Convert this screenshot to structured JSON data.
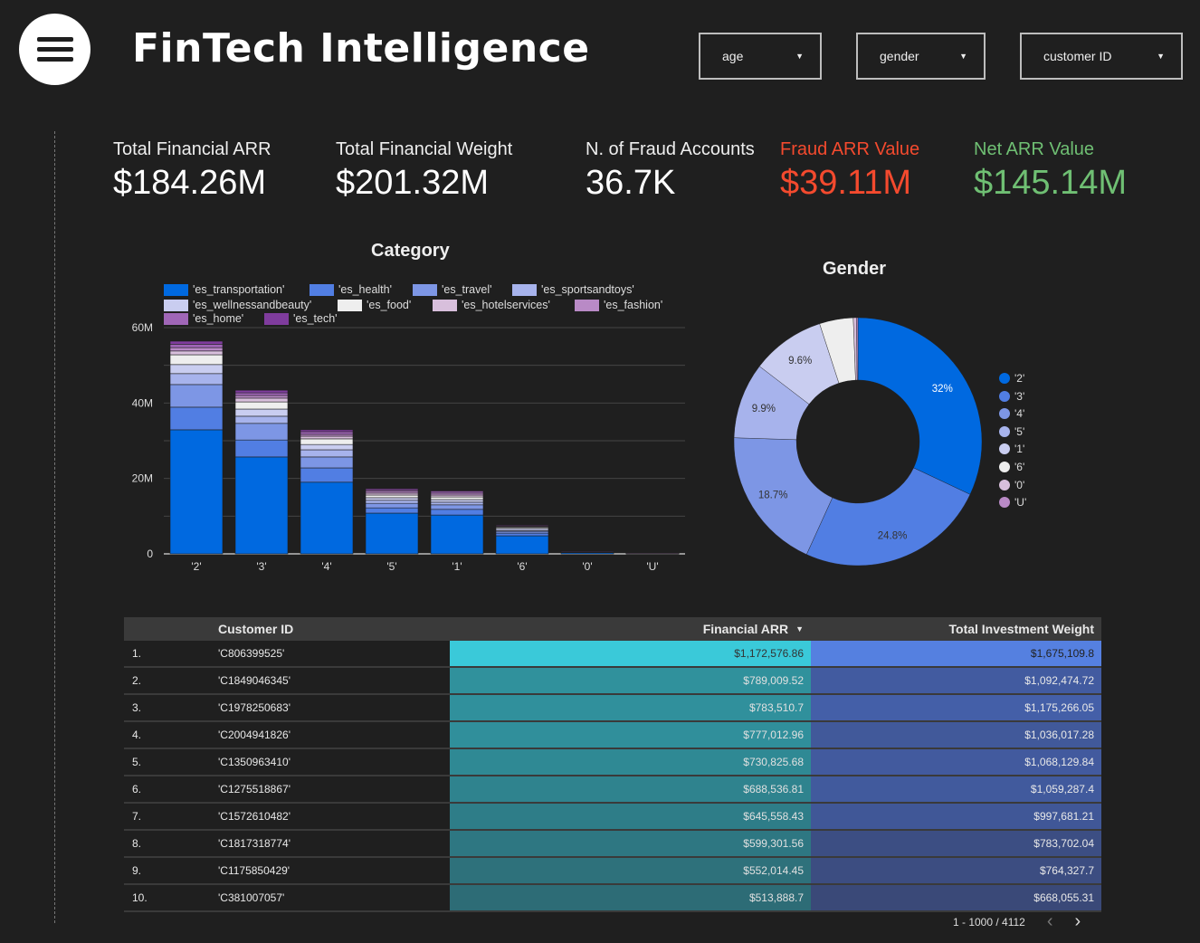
{
  "header": {
    "title": "FinTech Intelligence",
    "menu_icon": "hamburger-icon",
    "filters": [
      {
        "label": "age"
      },
      {
        "label": "gender"
      },
      {
        "label": "customer ID"
      }
    ]
  },
  "kpis": [
    {
      "label": "Total Financial ARR",
      "value": "$184.26M",
      "color": "#ffffff"
    },
    {
      "label": "Total Financial Weight",
      "value": "$201.32M",
      "color": "#ffffff"
    },
    {
      "label": "N. of Fraud Accounts",
      "value": "36.7K",
      "color": "#ffffff"
    },
    {
      "label": "Fraud ARR Value",
      "value": "$39.11M",
      "color": "#f44a2e"
    },
    {
      "label": "Net ARR Value",
      "value": "$145.14M",
      "color": "#6fbf73"
    }
  ],
  "chart_data": [
    {
      "type": "bar",
      "stacked": true,
      "title": "Category",
      "xlabel": "",
      "ylabel": "",
      "ylim": [
        0,
        60
      ],
      "yticks": [
        "0",
        "20M",
        "40M",
        "60M"
      ],
      "categories": [
        "'2'",
        "'3'",
        "'4'",
        "'5'",
        "'1'",
        "'6'",
        "'0'",
        "'U'"
      ],
      "series": [
        {
          "name": "'es_transportation'",
          "color": "#0069e0",
          "values": [
            32.9,
            25.7,
            19.0,
            10.8,
            10.3,
            4.8,
            0.4,
            0.15
          ]
        },
        {
          "name": "'es_health'",
          "color": "#517ee3",
          "values": [
            6.0,
            4.5,
            3.8,
            1.4,
            1.5,
            0.7,
            0.1,
            0.05
          ]
        },
        {
          "name": "'es_travel'",
          "color": "#7d96e5",
          "values": [
            6.0,
            4.4,
            2.9,
            1.2,
            1.2,
            0.5,
            0.05,
            0.03
          ]
        },
        {
          "name": "'es_sportsandtoys'",
          "color": "#a7b3ec",
          "values": [
            2.9,
            1.9,
            1.9,
            0.8,
            0.7,
            0.2,
            0.03,
            0.02
          ]
        },
        {
          "name": "'es_wellnessandbeauty'",
          "color": "#c9cdf0",
          "values": [
            2.4,
            1.9,
            1.4,
            0.7,
            0.7,
            0.5,
            0.03,
            0.02
          ]
        },
        {
          "name": "'es_food'",
          "color": "#eeeeee",
          "values": [
            2.6,
            1.9,
            1.5,
            0.7,
            0.7,
            0.3,
            0.03,
            0.01
          ]
        },
        {
          "name": "'es_hotelservices'",
          "color": "#d8bfdc",
          "values": [
            1.0,
            1.0,
            0.7,
            0.5,
            0.5,
            0.2,
            0.02,
            0.01
          ]
        },
        {
          "name": "'es_fashion'",
          "color": "#b98ac6",
          "values": [
            0.9,
            0.7,
            0.5,
            0.5,
            0.5,
            0.2,
            0.02,
            0.01
          ]
        },
        {
          "name": "'es_home'",
          "color": "#a066b7",
          "values": [
            0.9,
            0.7,
            0.7,
            0.4,
            0.5,
            0.15,
            0.01,
            0.0
          ]
        },
        {
          "name": "'es_tech'",
          "color": "#7f3c9d",
          "values": [
            0.8,
            0.7,
            0.5,
            0.3,
            0.2,
            0.15,
            0.01,
            0.0
          ]
        }
      ]
    },
    {
      "type": "pie",
      "donut": true,
      "title": "Gender",
      "legend": "right",
      "slices": [
        {
          "label": "'2'",
          "value": 32.0,
          "text": "32%",
          "color": "#0069e0"
        },
        {
          "label": "'3'",
          "value": 24.8,
          "text": "24.8%",
          "color": "#517ee3"
        },
        {
          "label": "'4'",
          "value": 18.7,
          "text": "18.7%",
          "color": "#7d96e5"
        },
        {
          "label": "'5'",
          "value": 9.9,
          "text": "9.9%",
          "color": "#a7b3ec"
        },
        {
          "label": "'1'",
          "value": 9.6,
          "text": "9.6%",
          "color": "#c9cdf0"
        },
        {
          "label": "'6'",
          "value": 4.4,
          "text": "",
          "color": "#eeeeee"
        },
        {
          "label": "'0'",
          "value": 0.4,
          "text": "",
          "color": "#d8bfdc"
        },
        {
          "label": "'U'",
          "value": 0.2,
          "text": "",
          "color": "#b98ac6"
        }
      ]
    }
  ],
  "table": {
    "headers": [
      "Customer ID",
      "Financial ARR",
      "Total Investment Weight"
    ],
    "sort_icon": "sort-desc-icon",
    "rows": [
      {
        "idx": "1.",
        "id": "'C806399525'",
        "arr": "$1,172,576.86",
        "arr_v": 1172576.86,
        "w": "$1,675,109.8",
        "w_v": 1675109.8
      },
      {
        "idx": "2.",
        "id": "'C1849046345'",
        "arr": "$789,009.52",
        "arr_v": 789009.52,
        "w": "$1,092,474.72",
        "w_v": 1092474.72
      },
      {
        "idx": "3.",
        "id": "'C1978250683'",
        "arr": "$783,510.7",
        "arr_v": 783510.7,
        "w": "$1,175,266.05",
        "w_v": 1175266.05
      },
      {
        "idx": "4.",
        "id": "'C2004941826'",
        "arr": "$777,012.96",
        "arr_v": 777012.96,
        "w": "$1,036,017.28",
        "w_v": 1036017.28
      },
      {
        "idx": "5.",
        "id": "'C1350963410'",
        "arr": "$730,825.68",
        "arr_v": 730825.68,
        "w": "$1,068,129.84",
        "w_v": 1068129.84
      },
      {
        "idx": "6.",
        "id": "'C1275518867'",
        "arr": "$688,536.81",
        "arr_v": 688536.81,
        "w": "$1,059,287.4",
        "w_v": 1059287.4
      },
      {
        "idx": "7.",
        "id": "'C1572610482'",
        "arr": "$645,558.43",
        "arr_v": 645558.43,
        "w": "$997,681.21",
        "w_v": 997681.21
      },
      {
        "idx": "8.",
        "id": "'C1817318774'",
        "arr": "$599,301.56",
        "arr_v": 599301.56,
        "w": "$783,702.04",
        "w_v": 783702.04
      },
      {
        "idx": "9.",
        "id": "'C1175850429'",
        "arr": "$552,014.45",
        "arr_v": 552014.45,
        "w": "$764,327.7",
        "w_v": 764327.7
      },
      {
        "idx": "10.",
        "id": "'C381007057'",
        "arr": "$513,888.7",
        "arr_v": 513888.7,
        "w": "$668,055.31",
        "w_v": 668055.31
      }
    ],
    "pagination": "1 - 1000 / 4112"
  }
}
